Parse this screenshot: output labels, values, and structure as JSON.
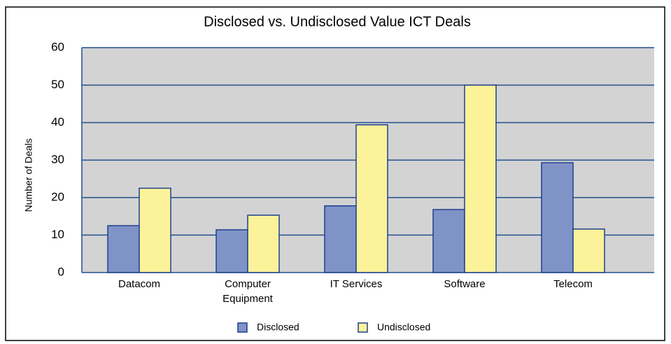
{
  "chart_data": {
    "type": "bar",
    "title": "Disclosed vs. Undisclosed Value ICT Deals",
    "y_label": "Number of Deals",
    "categories": [
      "Datacom",
      "Computer Equipment",
      "IT Services",
      "Software",
      "Telecom"
    ],
    "series": [
      {
        "name": "Disclosed",
        "color": "#7f93c6",
        "values": [
          12.5,
          11.4,
          17.8,
          16.8,
          29.3
        ]
      },
      {
        "name": "Undisclosed",
        "color": "#fcf29a",
        "values": [
          22.5,
          15.3,
          39.4,
          50,
          11.6
        ]
      }
    ],
    "ylim": [
      0,
      60
    ],
    "yticks": [
      0,
      10,
      20,
      30,
      40,
      50,
      60
    ],
    "grid": true,
    "legend": "bottom"
  }
}
